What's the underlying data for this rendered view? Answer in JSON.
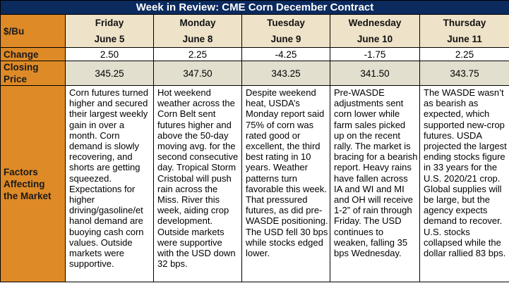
{
  "title": "Week in Review: CME Corn December Contract",
  "row_labels": {
    "units": "$/Bu",
    "change": "Change",
    "closing": "Closing\nPrice",
    "factors": "Factors\nAffecting\nthe Market"
  },
  "days": [
    {
      "day": "Friday",
      "date": "June 5",
      "change": "2.50",
      "close": "345.25",
      "factors": "Corn futures turned higher and secured their largest weekly gain in over a month. Corn demand is slowly recovering, and shorts are getting squeezed. Expectations for higher driving/gasoline/et hanol demand are buoying cash corn values. Outside markets were supportive."
    },
    {
      "day": "Monday",
      "date": "June 8",
      "change": "2.25",
      "close": "347.50",
      "factors": "Hot weekend weather across the Corn Belt sent futures higher and above the 50-day moving avg. for the second consecutive day. Tropical Storm Cristobal will push rain across the Miss. River this week, aiding crop development. Outside markets were supportive with the USD down 32 bps."
    },
    {
      "day": "Tuesday",
      "date": "June 9",
      "change": "-4.25",
      "close": "343.25",
      "factors": "Despite weekend heat, USDA’s Monday report said 75% of corn was rated good or excellent, the third best rating in 10 years. Weather patterns turn favorable this week. That pressured futures, as did pre-WASDE positioning. The USD fell 30 bps while stocks edged lower."
    },
    {
      "day": "Wednesday",
      "date": "June 10",
      "change": "-1.75",
      "close": "341.50",
      "factors": "Pre-WASDE adjustments sent corn lower while farm sales picked up on the recent rally. The market is bracing for a bearish report. Heavy rains have fallen across IA and WI and MI and OH will receive 1-2” of rain through Friday. The USD continues to weaken, falling 35 bps Wednesday."
    },
    {
      "day": "Thursday",
      "date": "June 11",
      "change": "2.25",
      "close": "343.75",
      "factors": "The WASDE wasn’t as bearish as expected, which supported new-crop futures. USDA projected the largest ending stocks figure in 33 years for the U.S. 2020/21 crop. Global supplies will be large, but the agency expects demand to recover. U.S. stocks collapsed while the dollar rallied 83 bps."
    }
  ],
  "colors": {
    "title_bg": "#0b2a5e",
    "label_bg": "#de8a27",
    "header_bg": "#eee2c8",
    "closing_bg": "#e2dfcf"
  }
}
